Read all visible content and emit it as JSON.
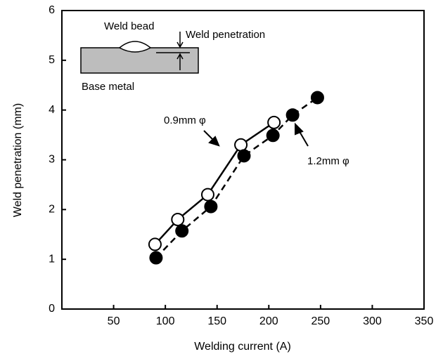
{
  "chart_data": {
    "type": "line",
    "xlabel": "Welding current (A)",
    "ylabel": "Weld penetration (mm)",
    "xlim": [
      0,
      350
    ],
    "xticks": [
      50,
      100,
      150,
      200,
      250,
      300,
      350
    ],
    "ylim": [
      0,
      6
    ],
    "yticks": [
      0,
      1,
      2,
      3,
      4,
      5,
      6
    ],
    "series": [
      {
        "name": "0.9mm φ",
        "color": "#000000",
        "marker": "open",
        "dash": false,
        "x": [
          90,
          112,
          141,
          173,
          205
        ],
        "values": [
          1.3,
          1.8,
          2.3,
          3.3,
          3.75
        ]
      },
      {
        "name": "1.2mm φ",
        "color": "#000000",
        "marker": "filled",
        "dash": true,
        "x": [
          91,
          116,
          144,
          176,
          204,
          223,
          247
        ],
        "values": [
          1.03,
          1.57,
          2.06,
          3.08,
          3.49,
          3.9,
          4.25
        ]
      }
    ],
    "inset_labels": {
      "bead": "Weld bead",
      "penetration": "Weld penetration",
      "base": "Base metal"
    }
  }
}
